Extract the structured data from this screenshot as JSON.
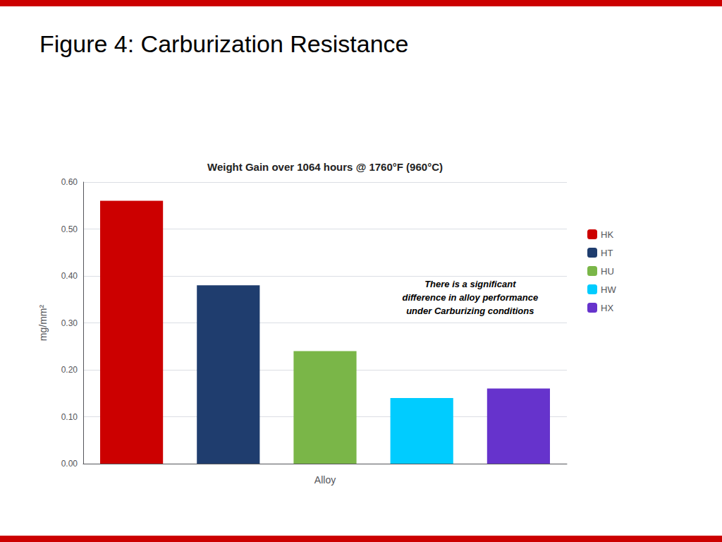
{
  "chart_data": {
    "type": "bar",
    "title": "Figure 4: Carburization Resistance",
    "subtitle": "Weight Gain over 1064 hours @ 1760°F (960°C)",
    "xlabel": "Alloy",
    "ylabel": "mg/mm²",
    "categories": [
      "HK",
      "HT",
      "HU",
      "HW",
      "HX"
    ],
    "values": [
      0.56,
      0.38,
      0.24,
      0.14,
      0.16
    ],
    "colors": [
      "#cc0000",
      "#1f3d6e",
      "#7ab648",
      "#00ccff",
      "#6633cc"
    ],
    "ylim": [
      0.0,
      0.6
    ],
    "yticks": [
      {
        "value": 0,
        "label": "0.00"
      },
      {
        "value": 0.1,
        "label": "0.10"
      },
      {
        "value": 0.2,
        "label": "0.20"
      },
      {
        "value": 0.3,
        "label": "0.30"
      },
      {
        "value": 0.4,
        "label": "0.40"
      },
      {
        "value": 0.5,
        "label": "0.50"
      },
      {
        "value": 0.6,
        "label": "0.60"
      }
    ],
    "annotation": "There is a significant\ndifference in alloy performance\nunder Carburizing conditions",
    "grid": true,
    "legend": "right",
    "tick_labels": "y"
  }
}
